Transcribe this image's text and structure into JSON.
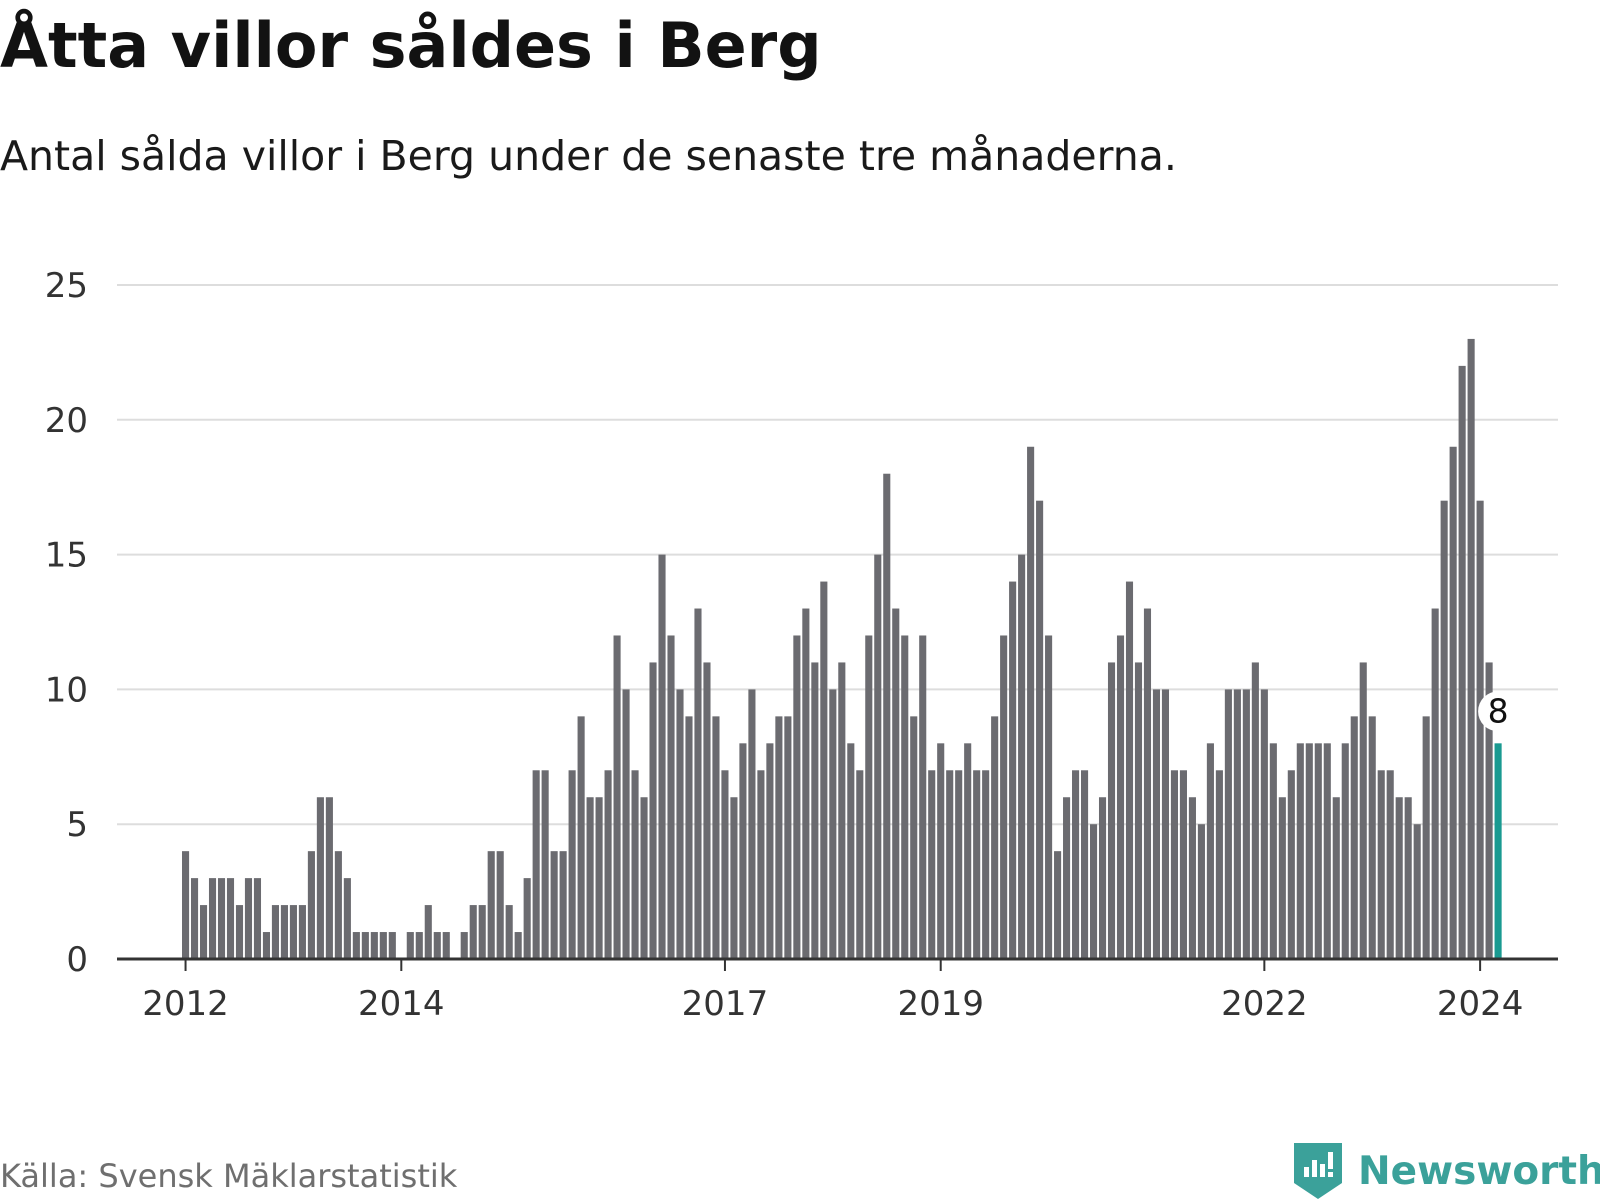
{
  "title": "Åtta villor såldes i Berg",
  "subtitle": "Antal sålda villor i Berg under de senaste tre månaderna.",
  "source": "Källa: Svensk Mäklarstatistik",
  "brand": {
    "name": "Newsworthy",
    "icon": "newsworthy-logo-icon"
  },
  "colors": {
    "bar": "#6b6b70",
    "highlight": "#1a9a91",
    "grid": "#dddddd",
    "axis": "#333333",
    "tick_text": "#333333",
    "brand": "#3ba19a"
  },
  "chart_data": {
    "type": "bar",
    "title": "Åtta villor såldes i Berg",
    "xlabel": "",
    "ylabel": "",
    "ylim": [
      0,
      25
    ],
    "yticks": [
      0,
      5,
      10,
      15,
      20,
      25
    ],
    "grid": true,
    "start": "2012-01",
    "xticks": [
      {
        "label": "2012",
        "index": 0
      },
      {
        "label": "2014",
        "index": 24
      },
      {
        "label": "2017",
        "index": 60
      },
      {
        "label": "2019",
        "index": 84
      },
      {
        "label": "2022",
        "index": 120
      },
      {
        "label": "2024",
        "index": 144
      }
    ],
    "values": [
      4,
      3,
      2,
      3,
      3,
      3,
      2,
      3,
      3,
      1,
      2,
      2,
      2,
      2,
      4,
      6,
      6,
      4,
      3,
      1,
      1,
      1,
      1,
      1,
      0,
      1,
      1,
      2,
      1,
      1,
      0,
      1,
      2,
      2,
      4,
      4,
      2,
      1,
      3,
      7,
      7,
      4,
      4,
      7,
      9,
      6,
      6,
      7,
      12,
      10,
      7,
      6,
      11,
      15,
      12,
      10,
      9,
      13,
      11,
      9,
      7,
      6,
      8,
      10,
      7,
      8,
      9,
      9,
      12,
      13,
      11,
      14,
      10,
      11,
      8,
      7,
      12,
      15,
      18,
      13,
      12,
      9,
      12,
      7,
      8,
      7,
      7,
      8,
      7,
      7,
      9,
      12,
      14,
      15,
      19,
      17,
      12,
      4,
      6,
      7,
      7,
      5,
      6,
      11,
      12,
      14,
      11,
      13,
      10,
      10,
      7,
      7,
      6,
      5,
      8,
      7,
      10,
      10,
      10,
      11,
      10,
      8,
      6,
      7,
      8,
      8,
      8,
      8,
      6,
      8,
      9,
      11,
      9,
      7,
      7,
      6,
      6,
      5,
      9,
      13,
      17,
      19,
      22,
      23,
      17,
      11,
      8
    ],
    "highlight": {
      "index": 146,
      "label": "8"
    }
  }
}
